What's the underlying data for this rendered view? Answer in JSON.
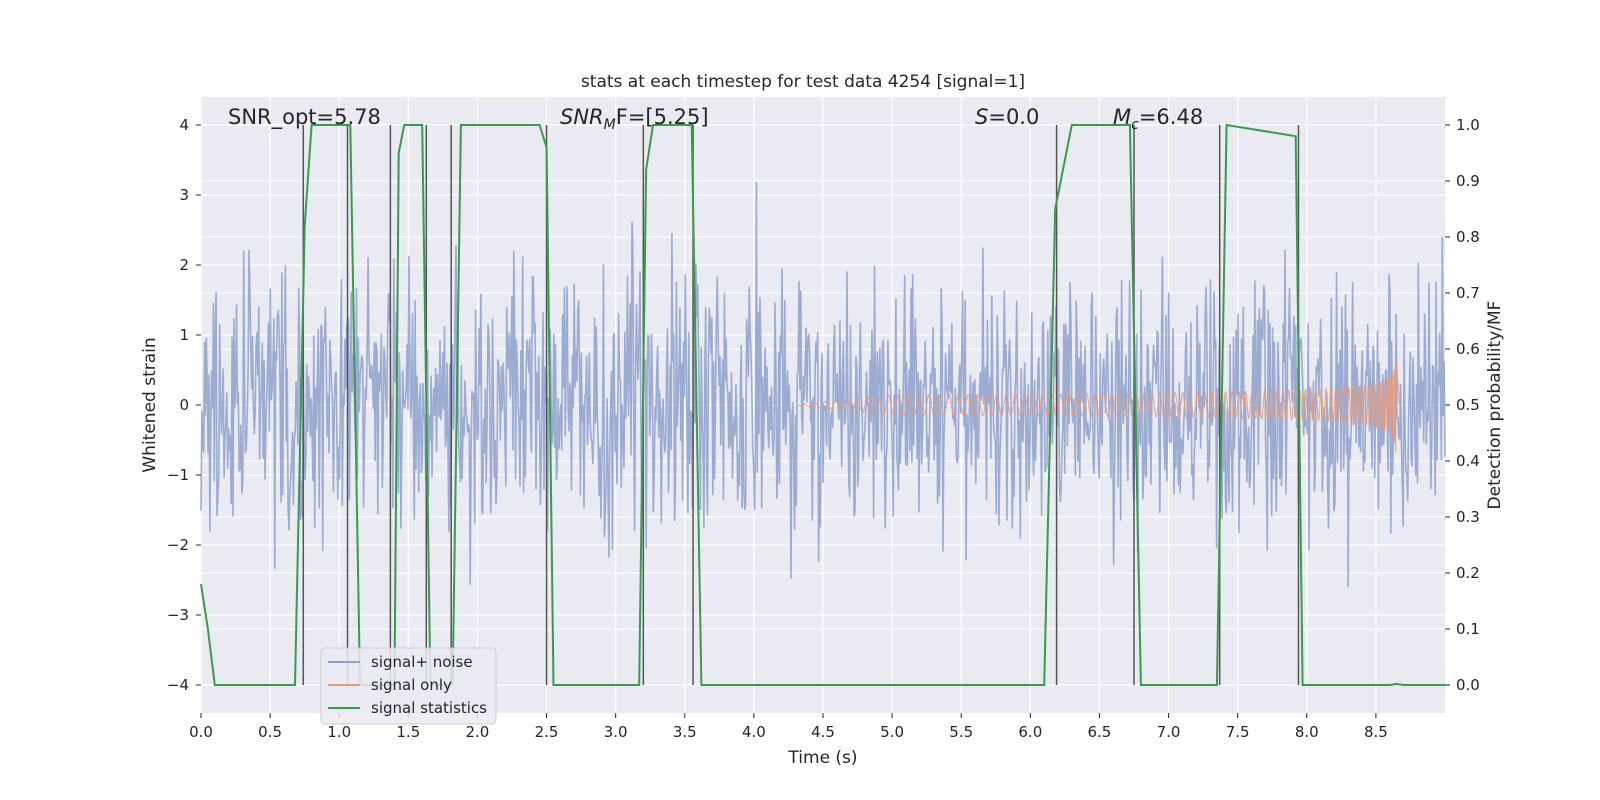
{
  "chart_data": {
    "type": "line",
    "title": "stats at each timestep for test data 4254 [signal=1]",
    "xlabel": "Time (s)",
    "ylabel_left": "Whitened strain",
    "ylabel_right": "Detection probability/MF",
    "xlim": [
      0,
      9
    ],
    "ylim_left": [
      -4.4,
      4.4
    ],
    "ylim_right": [
      -0.05,
      1.05
    ],
    "x_ticks": [
      "0.0",
      "0.5",
      "1.0",
      "1.5",
      "2.0",
      "2.5",
      "3.0",
      "3.5",
      "4.0",
      "4.5",
      "5.0",
      "5.5",
      "6.0",
      "6.5",
      "7.0",
      "7.5",
      "8.0",
      "8.5"
    ],
    "y_left_ticks": [
      "−4",
      "−3",
      "−2",
      "−1",
      "0",
      "1",
      "2",
      "3",
      "4"
    ],
    "y_right_ticks": [
      "0.0",
      "0.1",
      "0.2",
      "0.3",
      "0.4",
      "0.5",
      "0.6",
      "0.7",
      "0.8",
      "0.9",
      "1.0"
    ],
    "grid": true,
    "legend_position": "lower-left",
    "annotations": {
      "snr_opt": "SNR_opt=5.78",
      "snr_mf_main": "SNR",
      "snr_mf_sub": "M",
      "snr_mf_rest": "F=[5.25]",
      "s_main": "S",
      "s_rest": "=0.0",
      "mc_main": "M",
      "mc_sub": "c",
      "mc_rest": "=6.48"
    },
    "series": [
      {
        "name": "signal+ noise",
        "color": "#8da0cb",
        "kind": "noise",
        "amplitude_range": [
          -3.9,
          3.5
        ]
      },
      {
        "name": "signal only",
        "color": "#e49a7e",
        "kind": "chirp",
        "t_start": 4.3,
        "t_merge": 8.65,
        "peak_amplitude": 0.78
      },
      {
        "name": "signal statistics",
        "color": "#3a9a4e",
        "kind": "step",
        "axis": "right",
        "x": [
          0.0,
          0.05,
          0.1,
          0.68,
          0.75,
          0.8,
          1.08,
          1.15,
          1.4,
          1.43,
          1.47,
          1.6,
          1.66,
          1.82,
          1.88,
          2.45,
          2.5,
          2.55,
          3.17,
          3.22,
          3.27,
          3.55,
          3.62,
          3.7,
          6.1,
          6.18,
          6.3,
          6.72,
          6.8,
          6.88,
          7.35,
          7.42,
          7.92,
          7.97,
          8.02,
          8.6,
          8.65,
          8.7,
          9.0
        ],
        "y": [
          0.18,
          0.1,
          0.0,
          0.0,
          0.82,
          1.0,
          1.0,
          0.0,
          0.0,
          0.95,
          1.0,
          1.0,
          0.0,
          0.0,
          1.0,
          1.0,
          0.96,
          0.0,
          0.0,
          0.92,
          1.0,
          1.0,
          0.0,
          0.0,
          0.0,
          0.85,
          1.0,
          1.0,
          0.0,
          0.0,
          0.0,
          1.0,
          0.98,
          0.0,
          0.0,
          0.0,
          0.002,
          0.0,
          0.0
        ]
      },
      {
        "name": "",
        "color": "#555555",
        "kind": "vlines",
        "x": [
          0.74,
          1.06,
          1.37,
          1.63,
          1.81,
          2.5,
          3.2,
          3.56,
          6.19,
          6.75,
          7.37,
          7.94
        ]
      }
    ]
  },
  "legend": {
    "items": [
      {
        "label": "signal+ noise",
        "color": "#8da0cb"
      },
      {
        "label": "signal only",
        "color": "#e49a7e"
      },
      {
        "label": "signal statistics",
        "color": "#3a9a4e"
      }
    ]
  }
}
